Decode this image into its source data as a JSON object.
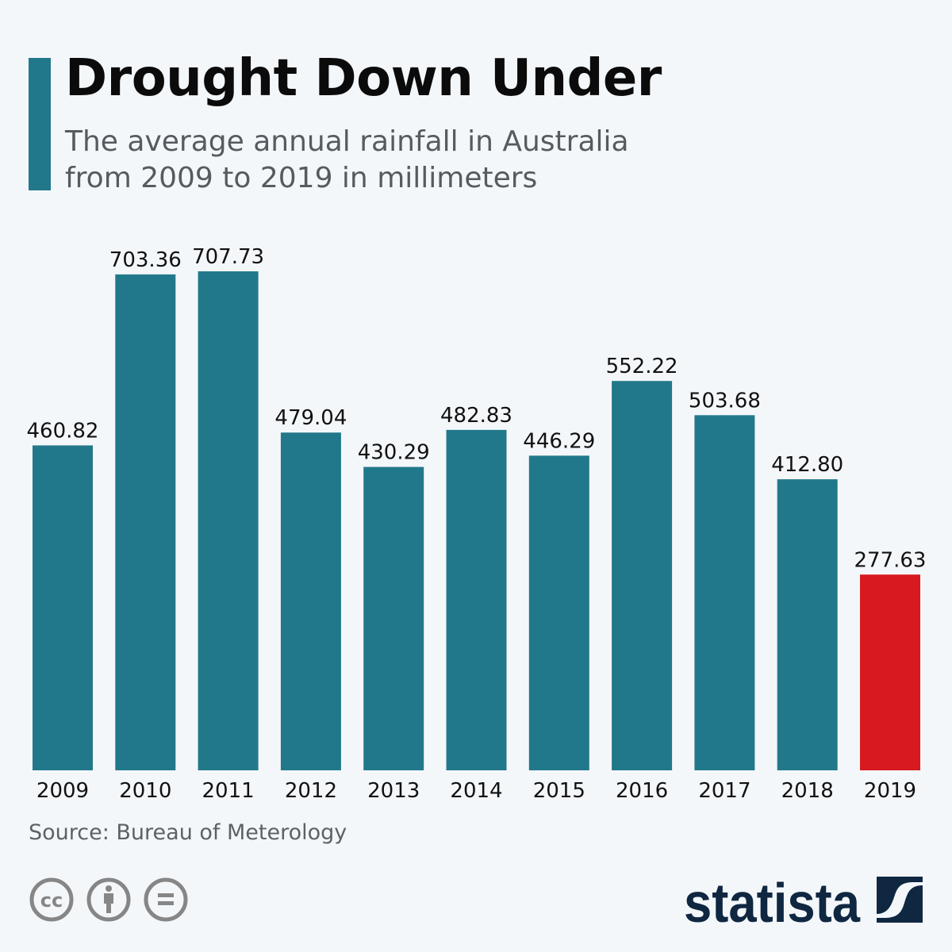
{
  "title": "Drought Down Under",
  "subtitle": "The average annual rainfall in Australia from 2009 to 2019 in millimeters",
  "source": "Source: Bureau of Meterology",
  "brand": "statista",
  "license_icons": [
    "cc-icon",
    "attribution-icon",
    "no-derivatives-icon"
  ],
  "colors": {
    "bar": "#22788b",
    "highlight": "#d71920",
    "accent": "#22788b"
  },
  "chart_data": {
    "type": "bar",
    "title": "Drought Down Under",
    "categories": [
      "2009",
      "2010",
      "2011",
      "2012",
      "2013",
      "2014",
      "2015",
      "2016",
      "2017",
      "2018",
      "2019"
    ],
    "values": [
      460.82,
      703.36,
      707.73,
      479.04,
      430.29,
      482.83,
      446.29,
      552.22,
      503.68,
      412.8,
      277.63
    ],
    "data_labels": [
      "460.82",
      "703.36",
      "707.73",
      "479.04",
      "430.29",
      "482.83",
      "446.29",
      "552.22",
      "503.68",
      "412.80",
      "277.63"
    ],
    "highlighted": [
      "2019"
    ],
    "xlabel": "",
    "ylabel": "",
    "ylim": [
      0,
      710
    ],
    "grid": false,
    "legend": "none"
  }
}
